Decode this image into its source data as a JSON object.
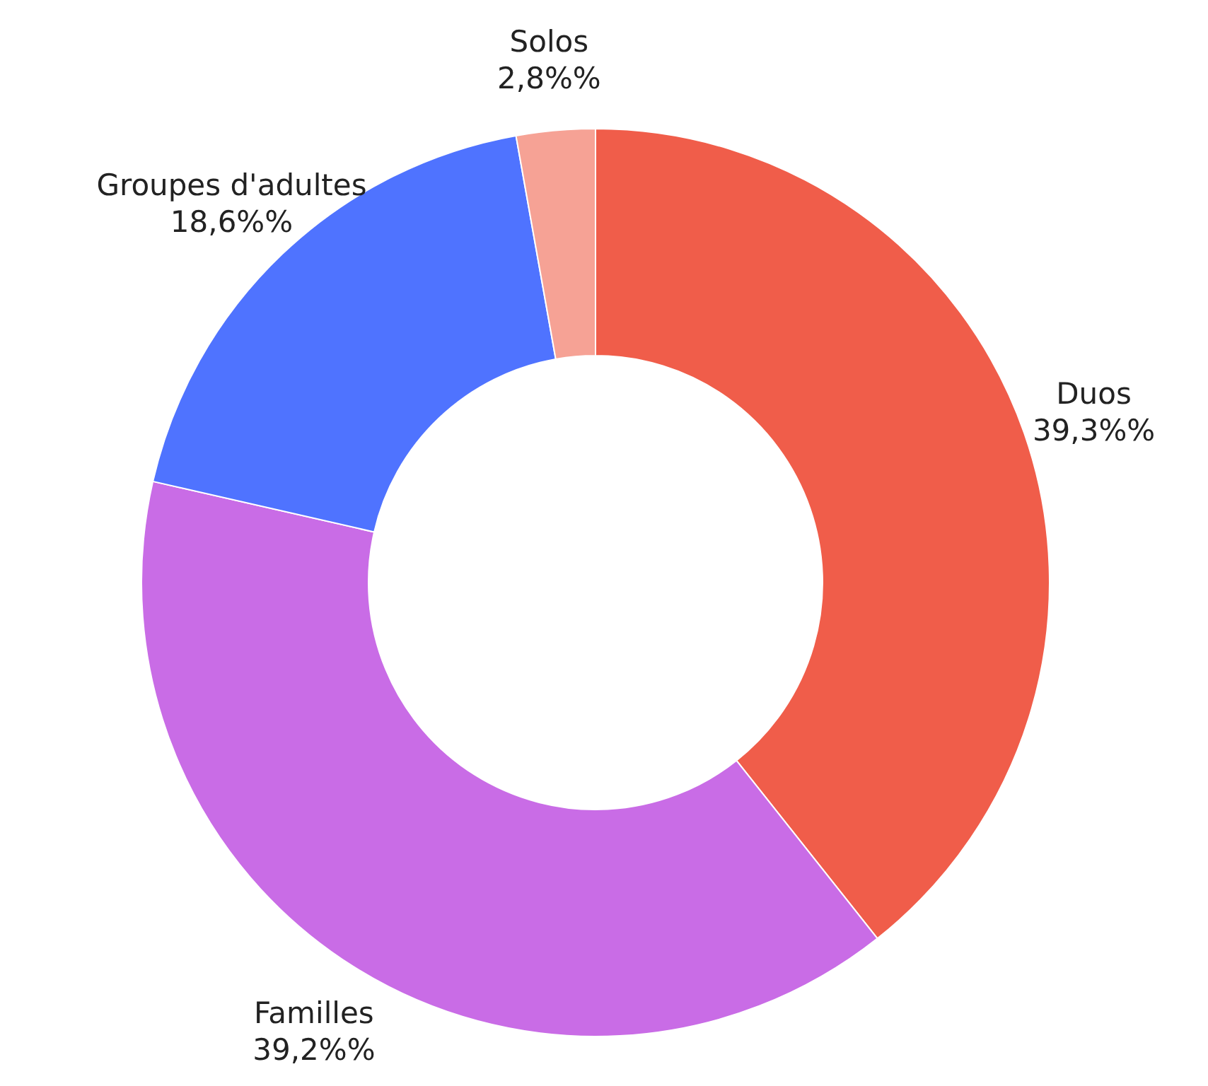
{
  "chart_data": {
    "type": "donut",
    "categories": [
      "Duos",
      "Familles",
      "Groupes d'adultes",
      "Solos"
    ],
    "values": [
      39.3,
      39.2,
      18.6,
      2.8
    ],
    "colors": [
      "#f05d4a",
      "#c96ce6",
      "#4f73ff",
      "#f6a295"
    ],
    "value_labels": [
      "39,3%%",
      "39,2%%",
      "18,6%%",
      "2,8%%"
    ],
    "legend": false
  }
}
